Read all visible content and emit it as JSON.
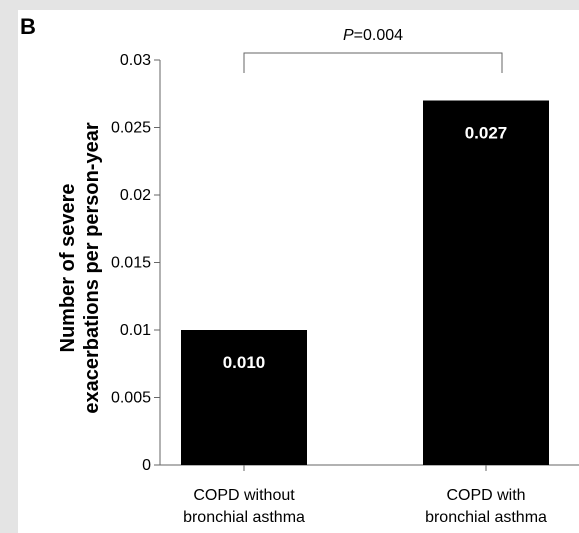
{
  "panel_label": "B",
  "chart_data": {
    "type": "bar",
    "categories": [
      [
        "COPD without",
        "bronchial asthma"
      ],
      [
        "COPD with",
        "bronchial asthma"
      ]
    ],
    "values": [
      0.01,
      0.027
    ],
    "data_labels": [
      "0.010",
      "0.027"
    ],
    "ylabel_lines": [
      "Number of severe",
      "exacerbations per person-year"
    ],
    "xlabel": "",
    "ylim": [
      0,
      0.03
    ],
    "yticks": [
      "0",
      "0.005",
      "0.01",
      "0.015",
      "0.02",
      "0.025",
      "0.03"
    ],
    "grid": false,
    "bar_color": "#000000",
    "significance": {
      "p_italic": "P",
      "p_value": "=0.004"
    }
  }
}
